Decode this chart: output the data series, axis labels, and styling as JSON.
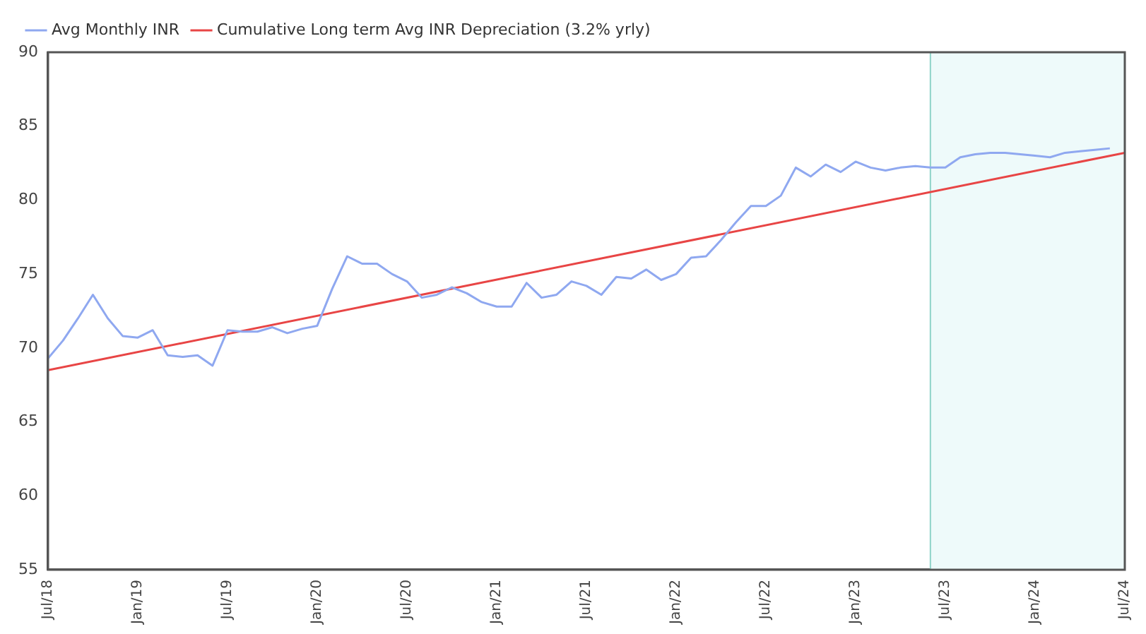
{
  "chart_data": {
    "type": "line",
    "xlim": [
      "2018-07",
      "2024-07"
    ],
    "xticks": [
      {
        "value": "2018-07",
        "label": "Jul/18"
      },
      {
        "value": "2019-01",
        "label": "Jan/19"
      },
      {
        "value": "2019-07",
        "label": "Jul/19"
      },
      {
        "value": "2020-01",
        "label": "Jan/20"
      },
      {
        "value": "2020-07",
        "label": "Jul/20"
      },
      {
        "value": "2021-01",
        "label": "Jan/21"
      },
      {
        "value": "2021-07",
        "label": "Jul/21"
      },
      {
        "value": "2022-01",
        "label": "Jan/22"
      },
      {
        "value": "2022-07",
        "label": "Jul/22"
      },
      {
        "value": "2023-01",
        "label": "Jan/23"
      },
      {
        "value": "2023-07",
        "label": "Jul/23"
      },
      {
        "value": "2024-01",
        "label": "Jan/24"
      },
      {
        "value": "2024-07",
        "label": "Jul/24"
      }
    ],
    "ylim": [
      55,
      90
    ],
    "yticks": [
      55,
      60,
      65,
      70,
      75,
      80,
      85,
      90
    ],
    "grid": false,
    "legend": "top left",
    "marker": "none",
    "line_style": "solid",
    "bands": [
      {
        "axis": "x",
        "from": "2023-06",
        "to": "2024-07",
        "color": "#eefafa"
      }
    ],
    "ref_lines": [
      {
        "axis": "x",
        "value": "2023-06",
        "color": "#8fd3c8",
        "line_style": "solid"
      }
    ],
    "series": [
      {
        "name": "Avg Monthly INR",
        "color": "#8fa8f0",
        "x": [
          "2018-07",
          "2018-08",
          "2018-09",
          "2018-10",
          "2018-11",
          "2018-12",
          "2019-01",
          "2019-02",
          "2019-03",
          "2019-04",
          "2019-05",
          "2019-06",
          "2019-07",
          "2019-08",
          "2019-09",
          "2019-10",
          "2019-11",
          "2019-12",
          "2020-01",
          "2020-02",
          "2020-03",
          "2020-04",
          "2020-05",
          "2020-06",
          "2020-07",
          "2020-08",
          "2020-09",
          "2020-10",
          "2020-11",
          "2020-12",
          "2021-01",
          "2021-02",
          "2021-03",
          "2021-04",
          "2021-05",
          "2021-06",
          "2021-07",
          "2021-08",
          "2021-09",
          "2021-10",
          "2021-11",
          "2021-12",
          "2022-01",
          "2022-02",
          "2022-03",
          "2022-04",
          "2022-05",
          "2022-06",
          "2022-07",
          "2022-08",
          "2022-09",
          "2022-10",
          "2022-11",
          "2022-12",
          "2023-01",
          "2023-02",
          "2023-03",
          "2023-04",
          "2023-05",
          "2023-06",
          "2023-07",
          "2023-08",
          "2023-09",
          "2023-10",
          "2023-11",
          "2023-12",
          "2024-01",
          "2024-02",
          "2024-03",
          "2024-04",
          "2024-05",
          "2024-06"
        ],
        "values": [
          69.3,
          70.5,
          72.0,
          73.6,
          72.0,
          70.8,
          70.7,
          71.2,
          69.5,
          69.4,
          69.5,
          68.8,
          71.2,
          71.1,
          71.1,
          71.4,
          71.0,
          71.3,
          71.5,
          74.0,
          76.2,
          75.7,
          75.7,
          75.0,
          74.5,
          73.4,
          73.6,
          74.1,
          73.7,
          73.1,
          72.8,
          72.8,
          74.4,
          73.4,
          73.6,
          74.5,
          74.2,
          73.6,
          74.8,
          74.7,
          75.3,
          74.6,
          75.0,
          76.1,
          76.2,
          77.3,
          78.5,
          79.6,
          79.6,
          80.3,
          82.2,
          81.6,
          82.4,
          81.9,
          82.6,
          82.2,
          82.0,
          82.2,
          82.3,
          82.2,
          82.2,
          82.9,
          83.1,
          83.2,
          83.2,
          83.1,
          83.0,
          82.9,
          83.2,
          83.3,
          83.4,
          83.5
        ]
      },
      {
        "name": "Cumulative Long term Avg INR Depreciation (3.2% yrly)",
        "color": "#e84545",
        "x": [
          "2018-07",
          "2024-07"
        ],
        "values": [
          68.5,
          83.2
        ]
      }
    ]
  }
}
